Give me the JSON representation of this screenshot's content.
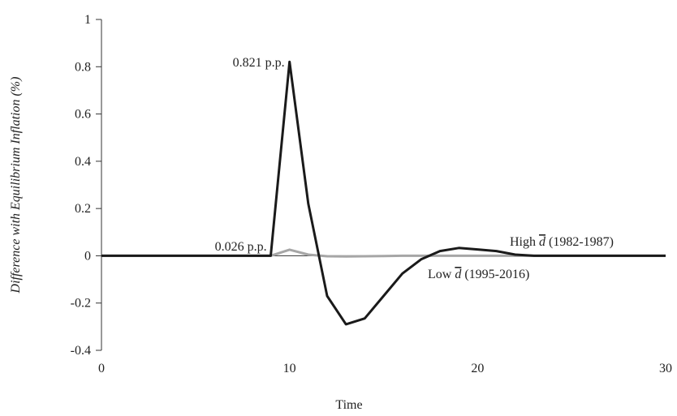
{
  "chart_data": {
    "type": "line",
    "title": "",
    "xlabel": "Time",
    "ylabel": "Difference with Equilibrium Inflation (%)",
    "xlim": [
      0,
      30
    ],
    "ylim": [
      -0.4,
      1
    ],
    "x_ticks": [
      0,
      10,
      20,
      30
    ],
    "x_tick_labels": [
      "0",
      "10",
      "20",
      "30"
    ],
    "y_ticks": [
      -0.4,
      -0.2,
      0,
      0.2,
      0.4,
      0.6,
      0.8,
      1
    ],
    "y_tick_labels": [
      "-0.4",
      "-0.2",
      "0",
      "0.2",
      "0.4",
      "0.6",
      "0.8",
      "1"
    ],
    "grid": false,
    "legend": "none",
    "x": [
      0,
      1,
      2,
      3,
      4,
      5,
      6,
      7,
      8,
      9,
      10,
      11,
      12,
      13,
      14,
      15,
      16,
      17,
      18,
      19,
      20,
      21,
      22,
      23,
      24,
      25,
      26,
      27,
      28,
      29,
      30
    ],
    "series": [
      {
        "name": "High d̄ (1982-1987)",
        "label_main": "High ",
        "label_symbol": "d",
        "label_period": " (1982-1987)",
        "color": "#1a1a1a",
        "values": [
          0,
          0,
          0,
          0,
          0,
          0,
          0,
          0,
          0,
          0,
          0.821,
          0.22,
          -0.17,
          -0.29,
          -0.265,
          -0.17,
          -0.075,
          -0.015,
          0.02,
          0.033,
          0.027,
          0.02,
          0.005,
          0,
          0,
          0,
          0,
          0,
          0,
          0,
          0
        ]
      },
      {
        "name": "Low d̄ (1995-2016)",
        "label_main": "Low ",
        "label_symbol": "d",
        "label_period": " (1995-2016)",
        "color": "#a6a6a6",
        "values": [
          0,
          0,
          0,
          0,
          0,
          0,
          0,
          0,
          0,
          0,
          0.026,
          0.005,
          -0.002,
          -0.003,
          -0.002,
          -0.001,
          0,
          0,
          0,
          0,
          0,
          0,
          0,
          0,
          0,
          0,
          0,
          0,
          0,
          0,
          0
        ]
      }
    ],
    "annotations": [
      {
        "text": "0.821 p.p.",
        "x": 10,
        "y": 0.821
      },
      {
        "text": "0.026 p.p.",
        "x": 10,
        "y": 0.026
      }
    ]
  }
}
